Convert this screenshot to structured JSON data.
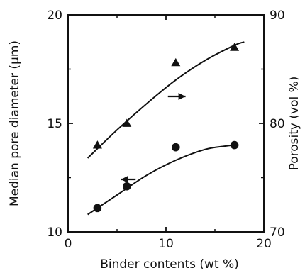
{
  "chart_data": {
    "type": "scatter",
    "x": {
      "label": "Binder contents (wt %)",
      "range": [
        0,
        20
      ],
      "ticks": [
        "0",
        "10",
        "20"
      ]
    },
    "y_left": {
      "label": "Median pore diameter (μm)",
      "range": [
        10,
        20
      ],
      "ticks": [
        "10",
        "15",
        "20"
      ]
    },
    "y_right": {
      "label": "Porosity (vol %)",
      "range": [
        70,
        90
      ],
      "ticks": [
        "70",
        "80",
        "90"
      ]
    },
    "series": [
      {
        "marker": "triangle",
        "axis": "right",
        "points": [
          [
            3,
            78
          ],
          [
            6,
            80
          ],
          [
            11,
            85.6
          ],
          [
            17,
            87
          ]
        ],
        "fit_curve": [
          [
            2,
            76.8
          ],
          [
            5,
            79.4
          ],
          [
            8,
            81.8
          ],
          [
            11,
            84
          ],
          [
            14,
            85.8
          ],
          [
            17,
            87.2
          ],
          [
            18,
            87.5
          ]
        ]
      },
      {
        "marker": "circle",
        "axis": "left",
        "points": [
          [
            3,
            11.1
          ],
          [
            6,
            12.1
          ],
          [
            11,
            13.9
          ],
          [
            17,
            14
          ]
        ],
        "fit_curve": [
          [
            2,
            10.8
          ],
          [
            5,
            11.7
          ],
          [
            8,
            12.6
          ],
          [
            11,
            13.3
          ],
          [
            14,
            13.8
          ],
          [
            16,
            13.95
          ],
          [
            17,
            14
          ]
        ]
      }
    ],
    "annotations": [
      {
        "type": "arrow",
        "direction": "right",
        "target_axis": "right"
      },
      {
        "type": "arrow",
        "direction": "left",
        "target_axis": "left"
      }
    ],
    "grid": false,
    "legend": "none"
  }
}
